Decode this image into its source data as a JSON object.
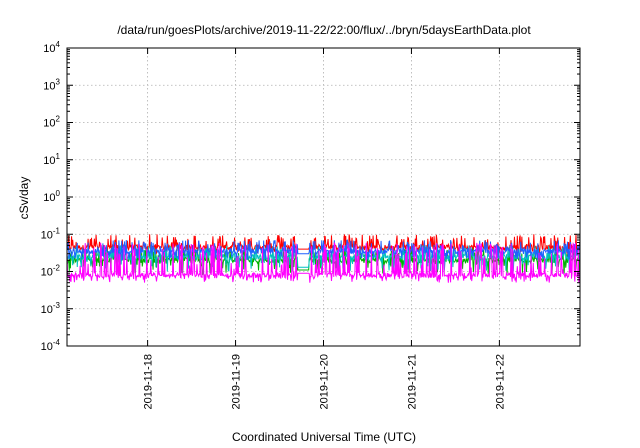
{
  "chart_data": {
    "type": "line",
    "title": "/data/run/goesPlots/archive/2019-11-22/22:00/flux/../bryn/5daysEarthData.plot",
    "xlabel": "Coordinated Universal Time (UTC)",
    "ylabel": "cSv/day",
    "y_scale": "log",
    "ylim": [
      0.0001,
      10000
    ],
    "xlim": [
      "2019-11-17T02:00",
      "2019-11-22T22:00"
    ],
    "y_ticks": [
      {
        "base": "10",
        "exp": "-4",
        "value": 0.0001
      },
      {
        "base": "10",
        "exp": "-3",
        "value": 0.001
      },
      {
        "base": "10",
        "exp": "-2",
        "value": 0.01
      },
      {
        "base": "10",
        "exp": "-1",
        "value": 0.1
      },
      {
        "base": "10",
        "exp": "0",
        "value": 1
      },
      {
        "base": "10",
        "exp": "1",
        "value": 10
      },
      {
        "base": "10",
        "exp": "2",
        "value": 100
      },
      {
        "base": "10",
        "exp": "3",
        "value": 1000
      },
      {
        "base": "10",
        "exp": "4",
        "value": 10000
      }
    ],
    "x_ticks": [
      {
        "label": "2019-11-18",
        "value": "2019-11-18T00:00"
      },
      {
        "label": "2019-11-19",
        "value": "2019-11-19T00:00"
      },
      {
        "label": "2019-11-20",
        "value": "2019-11-20T00:00"
      },
      {
        "label": "2019-11-21",
        "value": "2019-11-21T00:00"
      },
      {
        "label": "2019-11-22",
        "value": "2019-11-22T00:00"
      }
    ],
    "grid": true,
    "data_gap": [
      "2019-11-19T17:00",
      "2019-11-19T20:00"
    ],
    "series": [
      {
        "color": "#ff0000",
        "baseline": 0.045,
        "spike_max": 0.1,
        "dip_min": 0.03,
        "gap_level": 0.04
      },
      {
        "color": "#00b000",
        "baseline": 0.02,
        "spike_max": 0.04,
        "dip_min": 0.008,
        "gap_level": 0.011
      },
      {
        "color": "#00c0c0",
        "baseline": 0.025,
        "spike_max": 0.05,
        "dip_min": 0.01,
        "gap_level": 0.013
      },
      {
        "color": "#2060ff",
        "baseline": 0.035,
        "spike_max": 0.07,
        "dip_min": 0.02,
        "gap_level": 0.03
      },
      {
        "color": "#ff00ff",
        "baseline": 0.008,
        "spike_max": 0.06,
        "dip_min": 0.005,
        "gap_level": 0.009
      }
    ]
  }
}
